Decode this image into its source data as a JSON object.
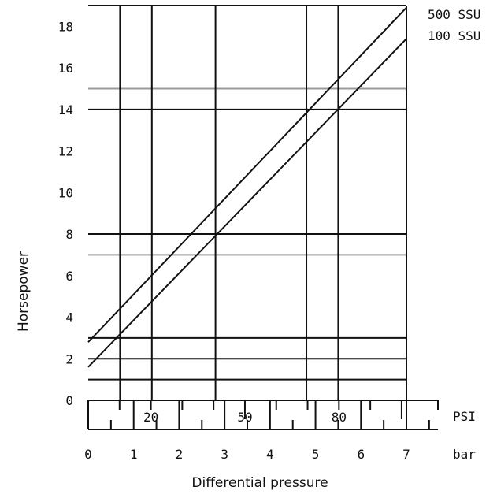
{
  "chart_data": {
    "type": "line",
    "title": "",
    "ylabel": "Horsepower",
    "xlabel": "Differential pressure",
    "x_unit_bar": "bar",
    "x_unit_psi": "PSI",
    "xlim": [
      0,
      7
    ],
    "ylim": [
      0,
      19
    ],
    "y_ticks": [
      "0",
      "2",
      "4",
      "6",
      "8",
      "10",
      "12",
      "14",
      "16",
      "18"
    ],
    "bar_ticks": [
      "0",
      "1",
      "2",
      "3",
      "4",
      "5",
      "6",
      "7"
    ],
    "psi_labels": [
      "20",
      "50",
      "80"
    ],
    "grid": true,
    "series": [
      {
        "name": "500 SSU",
        "x": [
          0,
          7
        ],
        "y": [
          2.8,
          18.9
        ]
      },
      {
        "name": "100 SSU",
        "x": [
          0,
          7
        ],
        "y": [
          1.6,
          17.4
        ]
      }
    ],
    "vertical_gridlines_bar": [
      0.7,
      1.4,
      2.8,
      4.8,
      5.5,
      7
    ],
    "horizontal_gridlines_dark": [
      1,
      2,
      3,
      8,
      14,
      19
    ],
    "horizontal_gridlines_light": [
      7,
      15
    ]
  }
}
